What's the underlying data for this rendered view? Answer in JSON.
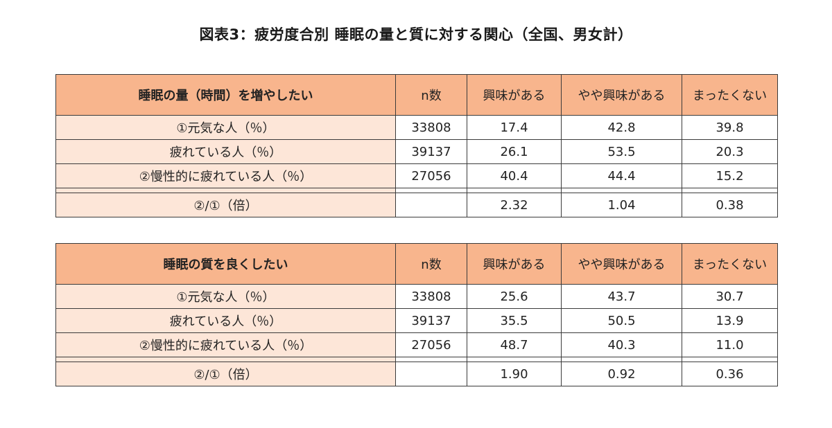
{
  "page": {
    "title": "図表3：疲労度合別 睡眠の量と質に対する関心（全国、男女計）"
  },
  "tables": [
    {
      "header": {
        "label": "睡眠の量（時間）を増やしたい",
        "columns": [
          "n数",
          "興味がある",
          "やや興味がある",
          "まったくない"
        ]
      },
      "rows": [
        {
          "label": "①元気な人（％）",
          "n": "33808",
          "interested": "17.4",
          "somewhat": "42.8",
          "none": "39.8"
        },
        {
          "label": "疲れている人（％）",
          "n": "39137",
          "interested": "26.1",
          "somewhat": "53.5",
          "none": "20.3"
        },
        {
          "label": "②慢性的に疲れている人（％）",
          "n": "27056",
          "interested": "40.4",
          "somewhat": "44.4",
          "none": "15.2"
        }
      ],
      "ratio": {
        "label": "②/①（倍）",
        "n": "",
        "interested": "2.32",
        "somewhat": "1.04",
        "none": "0.38"
      }
    },
    {
      "header": {
        "label": "睡眠の質を良くしたい",
        "columns": [
          "n数",
          "興味がある",
          "やや興味がある",
          "まったくない"
        ]
      },
      "rows": [
        {
          "label": "①元気な人（％）",
          "n": "33808",
          "interested": "25.6",
          "somewhat": "43.7",
          "none": "30.7"
        },
        {
          "label": "疲れている人（％）",
          "n": "39137",
          "interested": "35.5",
          "somewhat": "50.5",
          "none": "13.9"
        },
        {
          "label": "②慢性的に疲れている人（％）",
          "n": "27056",
          "interested": "48.7",
          "somewhat": "40.3",
          "none": "11.0"
        }
      ],
      "ratio": {
        "label": "②/①（倍）",
        "n": "",
        "interested": "1.90",
        "somewhat": "0.92",
        "none": "0.36"
      }
    }
  ],
  "colors": {
    "header_bg": "#f8b58d",
    "label_bg": "#fde6d8",
    "border": "#3a3a3a"
  }
}
